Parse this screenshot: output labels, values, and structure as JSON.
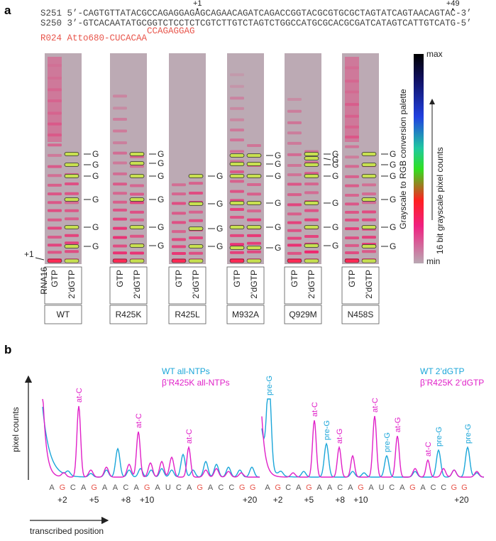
{
  "panel_a": {
    "label": "a",
    "plus1": "+1",
    "plus49": "+49",
    "template_top": "S251 5’-CAGTGTTATACGCCAGAGGAGAGCAGAACAGATCAGACCGGTACGCGTGCGCTAGTATCAGTAACAGTAC-3’",
    "template_bottom": "S250 3’-GTCACAATATGCGGTCTCCTCTCGTCTTGTCTAGTCTGGCCATGCGCACGCGATCATAGTCATTGTCATG-5’",
    "rna_label": "R024 Atto680-CUCACAA",
    "rna_extension": "CCAGAGGAG",
    "start_marker": "+1",
    "rna_name": "RNA16",
    "gels": [
      {
        "name": "WT",
        "lanes": [
          "GTP",
          "2’dGTP"
        ],
        "g_labels": [
          "G",
          "G",
          "G",
          "G",
          "G",
          "G"
        ]
      },
      {
        "name": "R425K",
        "lanes": [
          "GTP",
          "2’dGTP"
        ],
        "g_labels": [
          "G",
          "G",
          "G",
          "G",
          "G",
          "G"
        ]
      },
      {
        "name": "R425L",
        "lanes": [
          "GTP",
          "2’dGTP"
        ],
        "g_labels": [
          "G",
          "G",
          "G",
          "G"
        ]
      },
      {
        "name": "M932A",
        "lanes": [
          "GTP",
          "2’dGTP"
        ],
        "g_labels": [
          "G",
          "G",
          "G",
          "G",
          "G",
          "G"
        ]
      },
      {
        "name": "Q929M",
        "lanes": [
          "GTP",
          "2’dGTP"
        ],
        "g_labels": [
          "G",
          "G",
          "G",
          "G",
          "G",
          "G",
          "G"
        ]
      },
      {
        "name": "N458S",
        "lanes": [
          "GTP",
          "2’dGTP"
        ],
        "g_labels": [
          "G",
          "G",
          "G",
          "G",
          "G",
          "G"
        ]
      }
    ],
    "palette": {
      "max": "max",
      "min": "min",
      "title": "Grayscale to RGB conversion palette",
      "axis_label": "16 bit grayscale pixel counts"
    }
  },
  "panel_b": {
    "label": "b",
    "y_label": "pixel counts",
    "x_label": "transcribed position",
    "plots": [
      {
        "legend": [
          {
            "name": "WT all-NTPs",
            "color": "#1ba6d9"
          },
          {
            "name": "β’R425K all-NTPs",
            "color": "#e020c8"
          }
        ],
        "peak_labels": [
          {
            "text": "at-C",
            "color": "#e020c8"
          },
          {
            "text": "at-C",
            "color": "#e020c8"
          },
          {
            "text": "at-C",
            "color": "#e020c8"
          }
        ],
        "sequence": [
          {
            "text": "A",
            "color": "#555555"
          },
          {
            "text": "G",
            "color": "#e8554b"
          },
          {
            "text": "C",
            "color": "#555555"
          },
          {
            "text": "A",
            "color": "#555555"
          },
          {
            "text": "G",
            "color": "#e8554b"
          },
          {
            "text": "A",
            "color": "#555555"
          },
          {
            "text": "A",
            "color": "#555555"
          },
          {
            "text": "C",
            "color": "#555555"
          },
          {
            "text": "A",
            "color": "#555555"
          },
          {
            "text": "G",
            "color": "#e8554b"
          },
          {
            "text": "A",
            "color": "#555555"
          },
          {
            "text": "U",
            "color": "#555555"
          },
          {
            "text": "C",
            "color": "#555555"
          },
          {
            "text": "A",
            "color": "#555555"
          },
          {
            "text": "G",
            "color": "#e8554b"
          },
          {
            "text": "A",
            "color": "#555555"
          },
          {
            "text": "C",
            "color": "#555555"
          },
          {
            "text": "C",
            "color": "#555555"
          },
          {
            "text": "G",
            "color": "#e8554b"
          },
          {
            "text": "G",
            "color": "#e8554b"
          }
        ],
        "positions": [
          "+2",
          "+5",
          "+8",
          "+10",
          "+20"
        ]
      },
      {
        "legend": [
          {
            "name": "WT 2’dGTP",
            "color": "#1ba6d9"
          },
          {
            "name": "β’R425K 2’dGTP",
            "color": "#e020c8"
          }
        ],
        "peak_labels": [
          {
            "text": "pre-G",
            "color": "#1ba6d9"
          },
          {
            "text": "at-C",
            "color": "#e020c8"
          },
          {
            "text": "pre-G",
            "color": "#1ba6d9"
          },
          {
            "text": "at-G",
            "color": "#e020c8"
          },
          {
            "text": "at-C",
            "color": "#e020c8"
          },
          {
            "text": "pre-G",
            "color": "#1ba6d9"
          },
          {
            "text": "at-G",
            "color": "#e020c8"
          },
          {
            "text": "at-C",
            "color": "#e020c8"
          },
          {
            "text": "pre-G",
            "color": "#1ba6d9"
          },
          {
            "text": "pre-G",
            "color": "#1ba6d9"
          }
        ],
        "sequence": [
          {
            "text": "A",
            "color": "#555555"
          },
          {
            "text": "G",
            "color": "#e8554b"
          },
          {
            "text": "C",
            "color": "#555555"
          },
          {
            "text": "A",
            "color": "#555555"
          },
          {
            "text": "G",
            "color": "#e8554b"
          },
          {
            "text": "A",
            "color": "#555555"
          },
          {
            "text": "A",
            "color": "#555555"
          },
          {
            "text": "C",
            "color": "#555555"
          },
          {
            "text": "A",
            "color": "#555555"
          },
          {
            "text": "G",
            "color": "#e8554b"
          },
          {
            "text": "A",
            "color": "#555555"
          },
          {
            "text": "U",
            "color": "#555555"
          },
          {
            "text": "C",
            "color": "#555555"
          },
          {
            "text": "A",
            "color": "#555555"
          },
          {
            "text": "G",
            "color": "#e8554b"
          },
          {
            "text": "A",
            "color": "#555555"
          },
          {
            "text": "C",
            "color": "#555555"
          },
          {
            "text": "C",
            "color": "#555555"
          },
          {
            "text": "G",
            "color": "#e8554b"
          },
          {
            "text": "G",
            "color": "#e8554b"
          }
        ],
        "positions": [
          "+2",
          "+5",
          "+8",
          "+10",
          "+20"
        ]
      }
    ]
  }
}
